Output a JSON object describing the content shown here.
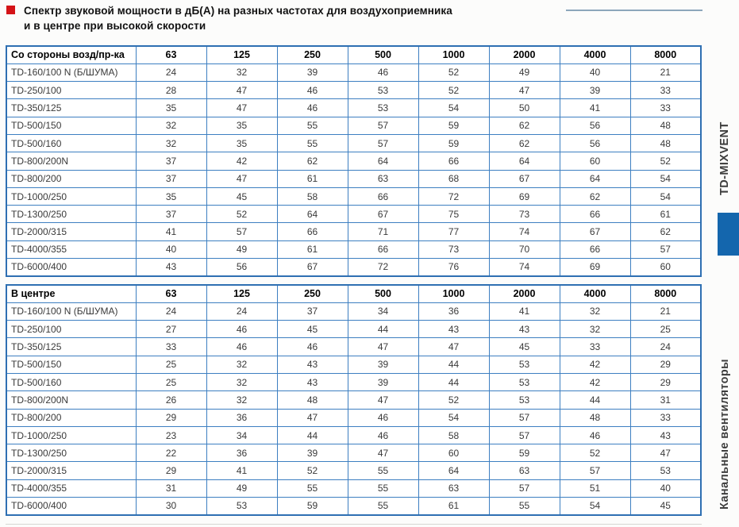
{
  "page": {
    "title_line1": "Спектр звуковой мощности в дБ(А) на разных частотах для воздухоприемника",
    "title_line2": "и в центре при высокой скорости"
  },
  "sidebar": {
    "series_label": "TD-MIXVENT",
    "category_label": "Канальные вентиляторы"
  },
  "colors": {
    "accent_red": "#d41317",
    "table_border": "#2e6fb2",
    "grid_line": "#3d7fc1",
    "sidebar_blue": "#1466ad"
  },
  "tables": [
    {
      "title": "Со стороны возд/пр-ка",
      "columns": [
        "63",
        "125",
        "250",
        "500",
        "1000",
        "2000",
        "4000",
        "8000"
      ],
      "rows": [
        {
          "label": "TD-160/100 N (Б/ШУМА)",
          "values": [
            24,
            32,
            39,
            46,
            52,
            49,
            40,
            21
          ]
        },
        {
          "label": "TD-250/100",
          "values": [
            28,
            47,
            46,
            53,
            52,
            47,
            39,
            33
          ]
        },
        {
          "label": "TD-350/125",
          "values": [
            35,
            47,
            46,
            53,
            54,
            50,
            41,
            33
          ]
        },
        {
          "label": "TD-500/150",
          "values": [
            32,
            35,
            55,
            57,
            59,
            62,
            56,
            48
          ]
        },
        {
          "label": "TD-500/160",
          "values": [
            32,
            35,
            55,
            57,
            59,
            62,
            56,
            48
          ]
        },
        {
          "label": "TD-800/200N",
          "values": [
            37,
            42,
            62,
            64,
            66,
            64,
            60,
            52
          ]
        },
        {
          "label": "TD-800/200",
          "values": [
            37,
            47,
            61,
            63,
            68,
            67,
            64,
            54
          ]
        },
        {
          "label": "TD-1000/250",
          "values": [
            35,
            45,
            58,
            66,
            72,
            69,
            62,
            54
          ]
        },
        {
          "label": "TD-1300/250",
          "values": [
            37,
            52,
            64,
            67,
            75,
            73,
            66,
            61
          ]
        },
        {
          "label": "TD-2000/315",
          "values": [
            41,
            57,
            66,
            71,
            77,
            74,
            67,
            62
          ]
        },
        {
          "label": "TD-4000/355",
          "values": [
            40,
            49,
            61,
            66,
            73,
            70,
            66,
            57
          ]
        },
        {
          "label": "TD-6000/400",
          "values": [
            43,
            56,
            67,
            72,
            76,
            74,
            69,
            60
          ]
        }
      ]
    },
    {
      "title": "В центре",
      "columns": [
        "63",
        "125",
        "250",
        "500",
        "1000",
        "2000",
        "4000",
        "8000"
      ],
      "rows": [
        {
          "label": "TD-160/100 N (Б/ШУМА)",
          "values": [
            24,
            24,
            37,
            34,
            36,
            41,
            32,
            21
          ]
        },
        {
          "label": "TD-250/100",
          "values": [
            27,
            46,
            45,
            44,
            43,
            43,
            32,
            25
          ]
        },
        {
          "label": "TD-350/125",
          "values": [
            33,
            46,
            46,
            47,
            47,
            45,
            33,
            24
          ]
        },
        {
          "label": "TD-500/150",
          "values": [
            25,
            32,
            43,
            39,
            44,
            53,
            42,
            29
          ]
        },
        {
          "label": "TD-500/160",
          "values": [
            25,
            32,
            43,
            39,
            44,
            53,
            42,
            29
          ]
        },
        {
          "label": "TD-800/200N",
          "values": [
            26,
            32,
            48,
            47,
            52,
            53,
            44,
            31
          ]
        },
        {
          "label": "TD-800/200",
          "values": [
            29,
            36,
            47,
            46,
            54,
            57,
            48,
            33
          ]
        },
        {
          "label": "TD-1000/250",
          "values": [
            23,
            34,
            44,
            46,
            58,
            57,
            46,
            43
          ]
        },
        {
          "label": "TD-1300/250",
          "values": [
            22,
            36,
            39,
            47,
            60,
            59,
            52,
            47
          ]
        },
        {
          "label": "TD-2000/315",
          "values": [
            29,
            41,
            52,
            55,
            64,
            63,
            57,
            53
          ]
        },
        {
          "label": "TD-4000/355",
          "values": [
            31,
            49,
            55,
            55,
            63,
            57,
            51,
            40
          ]
        },
        {
          "label": "TD-6000/400",
          "values": [
            30,
            53,
            59,
            55,
            61,
            55,
            54,
            45
          ]
        }
      ]
    }
  ]
}
